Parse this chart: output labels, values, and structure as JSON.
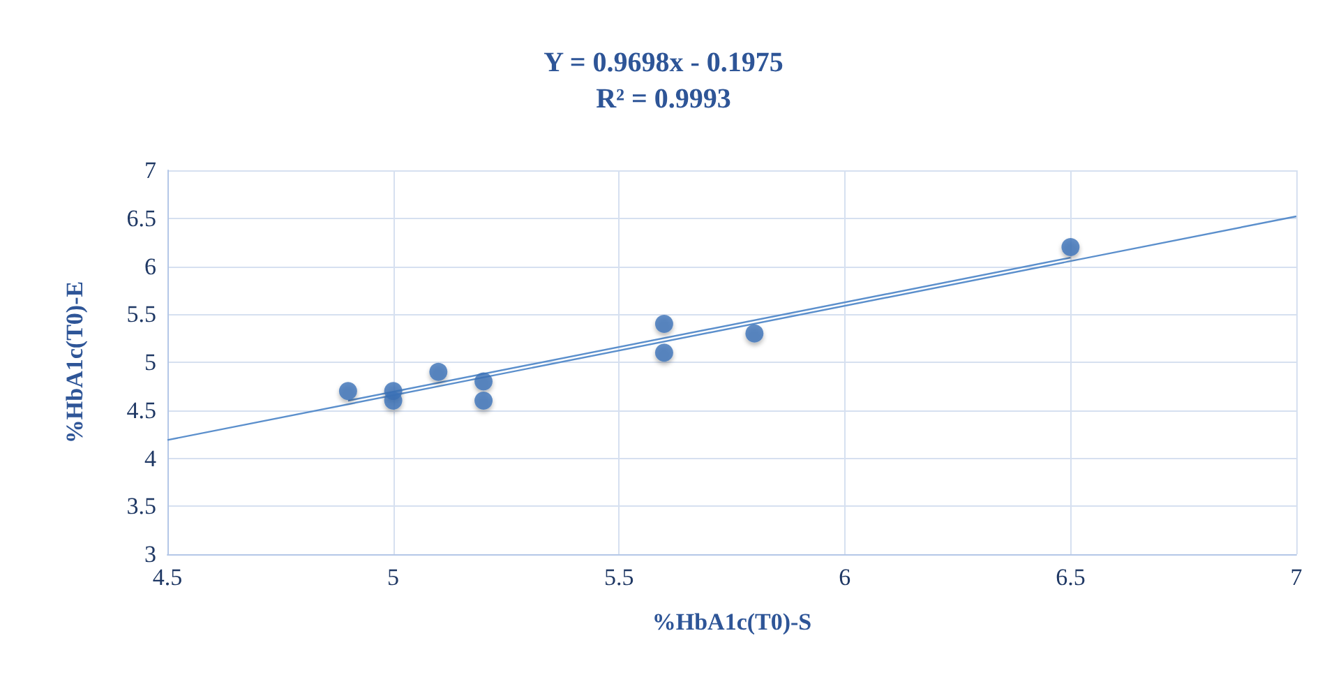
{
  "chart_data": {
    "type": "scatter",
    "title": "Y = 0.9698x - 0.1975",
    "subtitle": "R² = 0.9993",
    "xlabel": "%HbA1c(T0)-S",
    "ylabel": "%HbA1c(T0)-E",
    "x": [
      4.9,
      5,
      5,
      5.1,
      5.2,
      5.2,
      5.6,
      5.6,
      5.8,
      6.5
    ],
    "series": [
      {
        "color": "#3b72b8",
        "marker": "circle",
        "values": [
          4.7,
          4.7,
          4.6,
          4.9,
          4.8,
          4.6,
          5.4,
          5.1,
          5.3,
          6.2
        ]
      },
      {
        "type": "line",
        "color": "#5b8fcc",
        "marker": "none",
        "x": [
          4.5,
          7
        ],
        "values": [
          4.19,
          6.52
        ]
      },
      {
        "type": "line",
        "color": "#5b8fcc",
        "marker": "none",
        "x": [
          4.9,
          6.5
        ],
        "values": [
          4.6,
          6.09
        ]
      }
    ],
    "xlim": [
      4.5,
      7
    ],
    "xticks": [
      4.5,
      5,
      5.5,
      6,
      6.5,
      7
    ],
    "ylim": [
      3,
      7
    ],
    "yticks": [
      3,
      3.5,
      4,
      4.5,
      5,
      5.5,
      6,
      6.5,
      7
    ],
    "grid": true,
    "line_style": "solid"
  }
}
